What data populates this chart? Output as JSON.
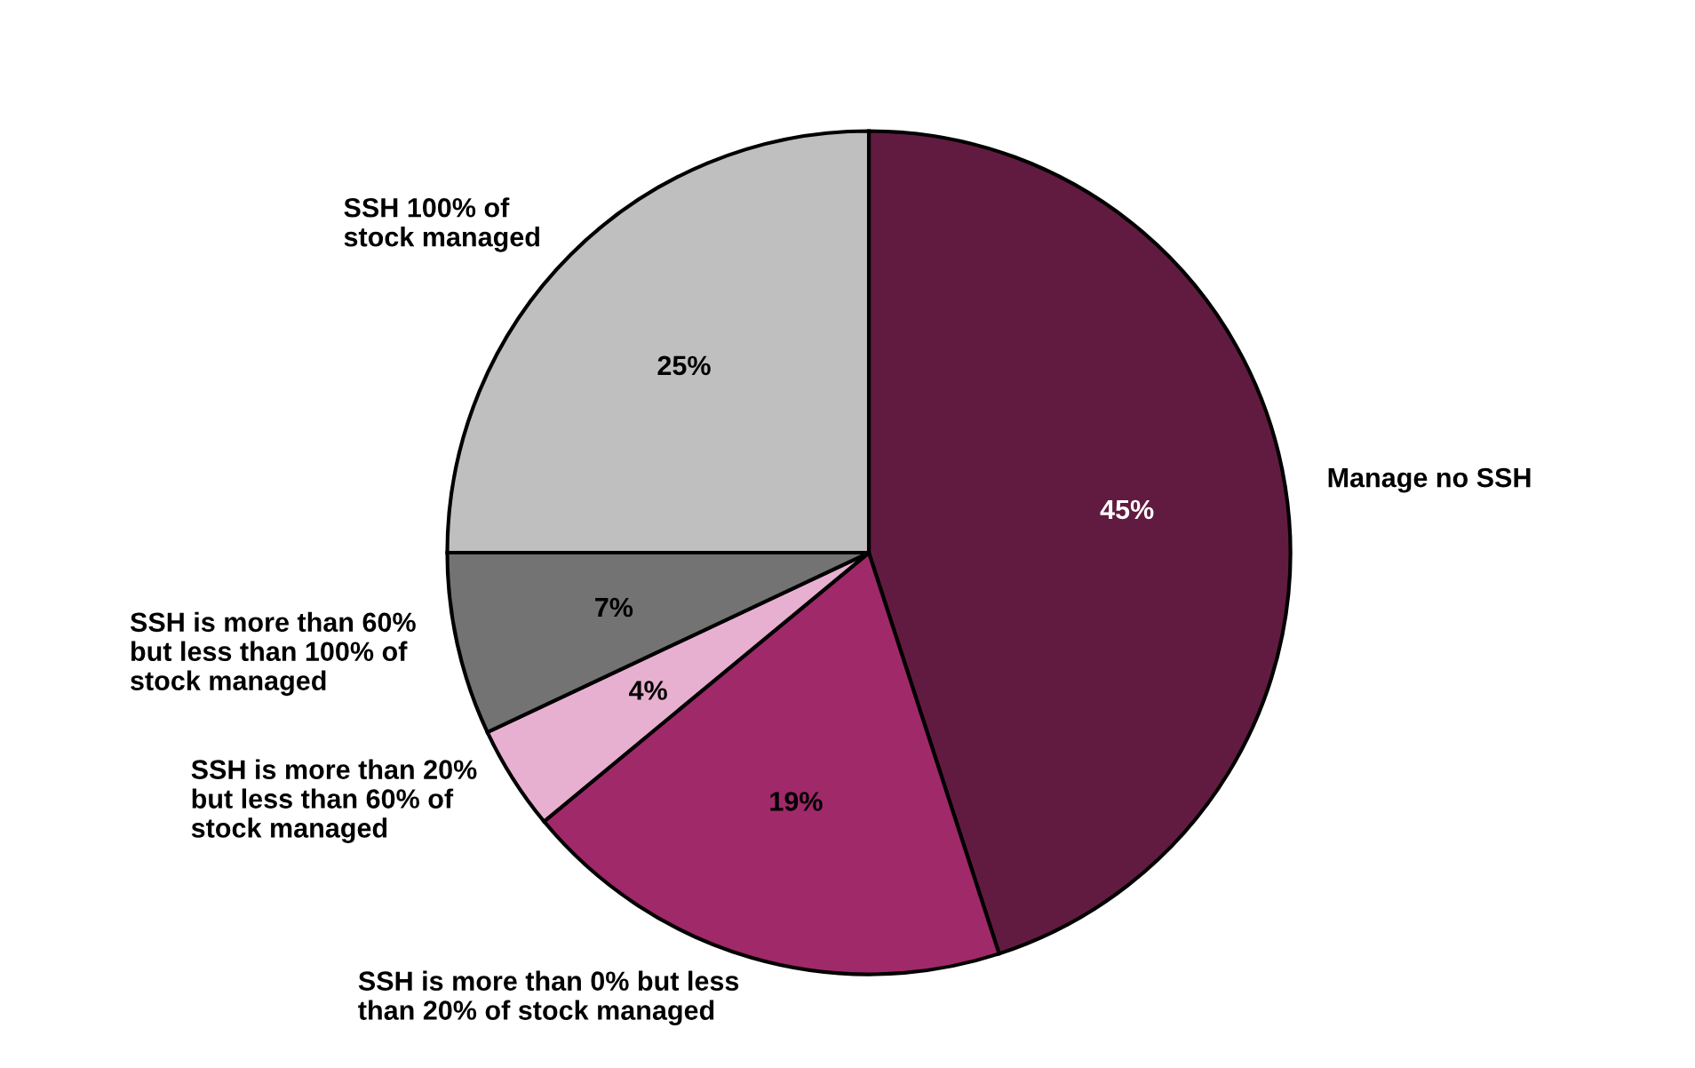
{
  "chart_data": {
    "type": "pie",
    "categories": [
      "Manage no SSH",
      "SSH is more than 0% but less\nthan 20% of stock managed",
      "SSH is more than 20%\nbut less than 60% of\nstock managed",
      "SSH is more than 60%\nbut less than 100% of\nstock managed",
      "SSH 100% of\nstock managed"
    ],
    "values": [
      45,
      19,
      4,
      7,
      25
    ],
    "colors": [
      "#621b40",
      "#a0296a",
      "#e8b0d0",
      "#737373",
      "#bfbfbf"
    ],
    "value_labels": [
      "45%",
      "19%",
      "4%",
      "7%",
      "25%"
    ]
  }
}
